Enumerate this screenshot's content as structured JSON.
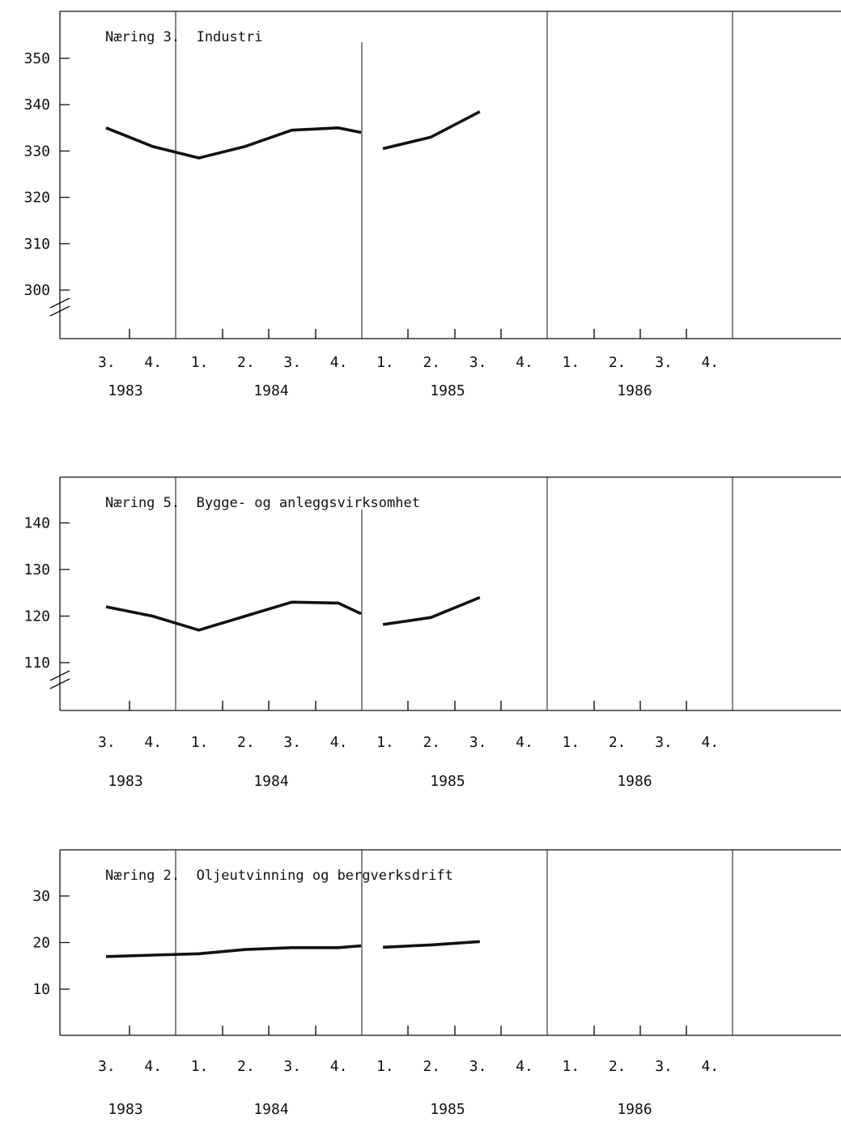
{
  "chart_data": [
    {
      "type": "line",
      "title": "Næring 3.  Industri",
      "quarter_labels": [
        "3.",
        "4.",
        "1.",
        "2.",
        "3.",
        "4.",
        "1.",
        "2.",
        "3.",
        "4.",
        "1.",
        "2.",
        "3.",
        "4."
      ],
      "years": [
        {
          "label": "1983",
          "quarters": [
            3,
            4
          ]
        },
        {
          "label": "1984",
          "quarters": [
            1,
            2,
            3,
            4
          ]
        },
        {
          "label": "1985",
          "quarters": [
            1,
            2,
            3,
            4
          ]
        },
        {
          "label": "1986",
          "quarters": [
            1,
            2,
            3,
            4
          ]
        }
      ],
      "y_ticks": [
        300,
        310,
        320,
        330,
        340,
        350
      ],
      "ylim": [
        290,
        360
      ],
      "axis_break": true,
      "series": [
        {
          "segments": [
            {
              "x": [
                0,
                1,
                2,
                3,
                4,
                5,
                6
              ],
              "y": [
                335,
                331,
                328.5,
                331,
                334.5,
                335,
                334
              ]
            },
            {
              "x": [
                6,
                7,
                8
              ],
              "y": [
                330.5,
                333,
                338.5
              ]
            }
          ]
        }
      ]
    },
    {
      "type": "line",
      "title": "Næring 5.  Bygge- og anleggsvirksomhet",
      "quarter_labels": [
        "3.",
        "4.",
        "1.",
        "2.",
        "3.",
        "4.",
        "1.",
        "2.",
        "3.",
        "4.",
        "1.",
        "2.",
        "3.",
        "4."
      ],
      "years": [
        {
          "label": "1983",
          "quarters": [
            3,
            4
          ]
        },
        {
          "label": "1984",
          "quarters": [
            1,
            2,
            3,
            4
          ]
        },
        {
          "label": "1985",
          "quarters": [
            1,
            2,
            3,
            4
          ]
        },
        {
          "label": "1986",
          "quarters": [
            1,
            2,
            3,
            4
          ]
        }
      ],
      "y_ticks": [
        110,
        120,
        130,
        140
      ],
      "ylim": [
        100,
        150
      ],
      "axis_break": true,
      "series": [
        {
          "segments": [
            {
              "x": [
                0,
                1,
                2,
                3,
                4,
                5,
                6
              ],
              "y": [
                122,
                120,
                117,
                120,
                123,
                122.8,
                120.5
              ]
            },
            {
              "x": [
                6,
                7,
                8
              ],
              "y": [
                118.2,
                119.7,
                124
              ]
            }
          ]
        }
      ]
    },
    {
      "type": "line",
      "title": "Næring 2.  Oljeutvinning og bergverksdrift",
      "quarter_labels": [
        "3.",
        "4.",
        "1.",
        "2.",
        "3.",
        "4.",
        "1.",
        "2.",
        "3.",
        "4.",
        "1.",
        "2.",
        "3.",
        "4."
      ],
      "years": [
        {
          "label": "1983",
          "quarters": [
            3,
            4
          ]
        },
        {
          "label": "1984",
          "quarters": [
            1,
            2,
            3,
            4
          ]
        },
        {
          "label": "1985",
          "quarters": [
            1,
            2,
            3,
            4
          ]
        },
        {
          "label": "1986",
          "quarters": [
            1,
            2,
            3,
            4
          ]
        }
      ],
      "y_ticks": [
        10,
        20,
        30
      ],
      "ylim": [
        0,
        40
      ],
      "axis_break": false,
      "series": [
        {
          "segments": [
            {
              "x": [
                0,
                1,
                2,
                3,
                4,
                5,
                6
              ],
              "y": [
                17,
                17.3,
                17.6,
                18.5,
                18.9,
                18.9,
                19.3
              ]
            },
            {
              "x": [
                6,
                7,
                8
              ],
              "y": [
                19,
                19.5,
                20.2
              ]
            }
          ]
        }
      ]
    }
  ]
}
